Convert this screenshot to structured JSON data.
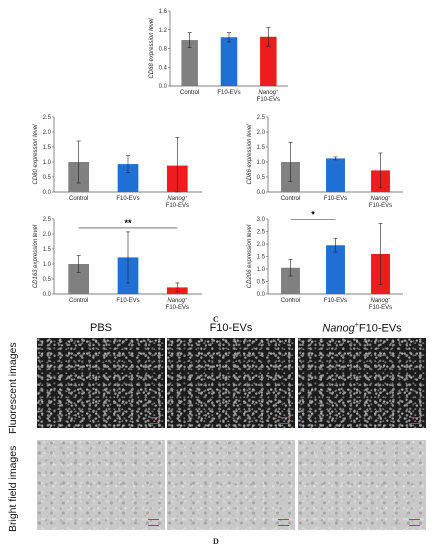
{
  "chart_data": [
    {
      "type": "bar",
      "id": "cd68",
      "ylabel": "CD68 expression level",
      "categories": [
        "Control",
        "F10-EVs",
        "Nanog+ F10-EVs"
      ],
      "values": [
        0.98,
        1.04,
        1.05
      ],
      "errors": [
        0.16,
        0.1,
        0.2
      ],
      "ylim": [
        0,
        1.6
      ],
      "ticks": [
        "0.0",
        "0.4",
        "0.8",
        "1.2",
        "1.6"
      ],
      "significance": []
    },
    {
      "type": "bar",
      "id": "cd80",
      "ylabel": "CD80 expression level",
      "categories": [
        "Control",
        "F10-EVs",
        "Nanog+ F10-EVs"
      ],
      "values": [
        1.0,
        0.93,
        0.88
      ],
      "errors": [
        0.7,
        0.28,
        0.93
      ],
      "ylim": [
        0,
        2.5
      ],
      "ticks": [
        "0.0",
        "0.5",
        "1.0",
        "1.5",
        "2.0",
        "2.5"
      ],
      "significance": []
    },
    {
      "type": "bar",
      "id": "cd86",
      "ylabel": "CD86 expression level",
      "categories": [
        "Control",
        "F10-EVs",
        "Nanog+ F10-EVs"
      ],
      "values": [
        1.0,
        1.12,
        0.72
      ],
      "errors": [
        0.65,
        0.05,
        0.58
      ],
      "ylim": [
        0,
        2.5
      ],
      "ticks": [
        "0.0",
        "0.5",
        "1.0",
        "1.5",
        "2.0",
        "2.5"
      ],
      "significance": []
    },
    {
      "type": "bar",
      "id": "cd163",
      "ylabel": "CD163 expression level",
      "categories": [
        "Control",
        "F10-EVs",
        "Nanog+ F10-EVs"
      ],
      "values": [
        1.0,
        1.22,
        0.22
      ],
      "errors": [
        0.28,
        0.85,
        0.15
      ],
      "ylim": [
        0,
        2.5
      ],
      "ticks": [
        "0.0",
        "0.5",
        "1.0",
        "1.5",
        "2.0",
        "2.5"
      ],
      "significance": [
        {
          "from": 0,
          "to": 2,
          "label": "**"
        }
      ]
    },
    {
      "type": "bar",
      "id": "cd206",
      "ylabel": "CD206 expression level",
      "categories": [
        "Control",
        "F10-EVs",
        "Nanog+ F10-EVs"
      ],
      "values": [
        1.05,
        1.95,
        1.6
      ],
      "errors": [
        0.33,
        0.27,
        1.22
      ],
      "ylim": [
        0,
        3.0
      ],
      "ticks": [
        "0.0",
        "0.5",
        "1.0",
        "1.5",
        "2.0",
        "2.5",
        "3.0"
      ],
      "significance": [
        {
          "from": 0,
          "to": 1,
          "label": "*"
        }
      ]
    }
  ],
  "colors": {
    "control": "#808080",
    "f10": "#1f6fd4",
    "nanog": "#ee1c1c"
  },
  "panel_labels": {
    "c": "C",
    "d": "D"
  },
  "columns": [
    "PBS",
    "F10-EVs",
    "F10-EVs"
  ],
  "column_prefix": "Nanog",
  "column_sup": "+",
  "rows": [
    "Fluorescent images",
    "Bright field images"
  ]
}
